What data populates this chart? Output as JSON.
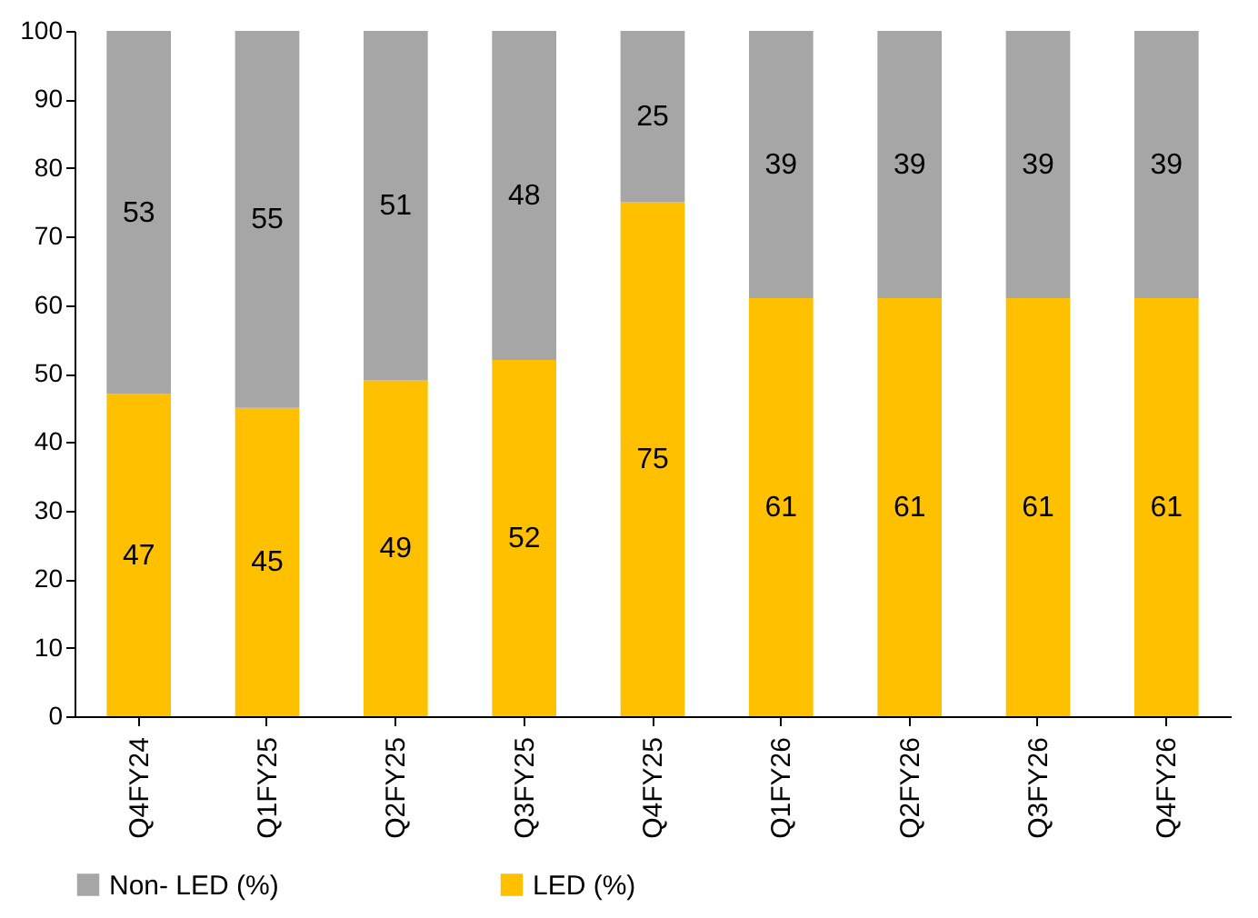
{
  "chart_data": {
    "type": "bar",
    "stacked": true,
    "data_labels": true,
    "legend": "bottom",
    "grid": false,
    "categories": [
      "Q4FY24",
      "Q1FY25",
      "Q2FY25",
      "Q3FY25",
      "Q4FY25",
      "Q1FY26",
      "Q2FY26",
      "Q3FY26",
      "Q4FY26"
    ],
    "ylim": [
      0,
      100
    ],
    "yticks": [
      0,
      10,
      20,
      30,
      40,
      50,
      60,
      70,
      80,
      90,
      100
    ],
    "series": [
      {
        "name": "LED (%)",
        "color": "#ffc000",
        "values": [
          47,
          45,
          49,
          52,
          75,
          61,
          61,
          61,
          61
        ]
      },
      {
        "name": "Non- LED (%)",
        "color": "#a6a6a6",
        "values": [
          53,
          55,
          51,
          48,
          25,
          39,
          39,
          39,
          39
        ]
      }
    ]
  }
}
